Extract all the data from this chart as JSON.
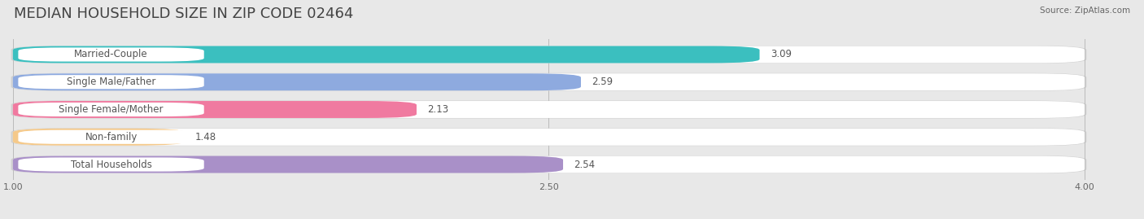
{
  "title": "MEDIAN HOUSEHOLD SIZE IN ZIP CODE 02464",
  "source": "Source: ZipAtlas.com",
  "categories": [
    "Married-Couple",
    "Single Male/Father",
    "Single Female/Mother",
    "Non-family",
    "Total Households"
  ],
  "values": [
    3.09,
    2.59,
    2.13,
    1.48,
    2.54
  ],
  "bar_colors": [
    "#3bbfbf",
    "#8eaadf",
    "#f07aa0",
    "#f5c98a",
    "#a990c8"
  ],
  "bar_bg_colors": [
    "#e8f8f8",
    "#e8eef8",
    "#fce8ef",
    "#fef0e0",
    "#ece8f5"
  ],
  "label_pill_color": "#ffffff",
  "xlim": [
    1.0,
    4.0
  ],
  "xticks": [
    1.0,
    2.5,
    4.0
  ],
  "value_fontsize": 8.5,
  "label_fontsize": 8.5,
  "title_fontsize": 13,
  "background_color": "#f0f0f0",
  "fig_bg_color": "#e8e8e8"
}
